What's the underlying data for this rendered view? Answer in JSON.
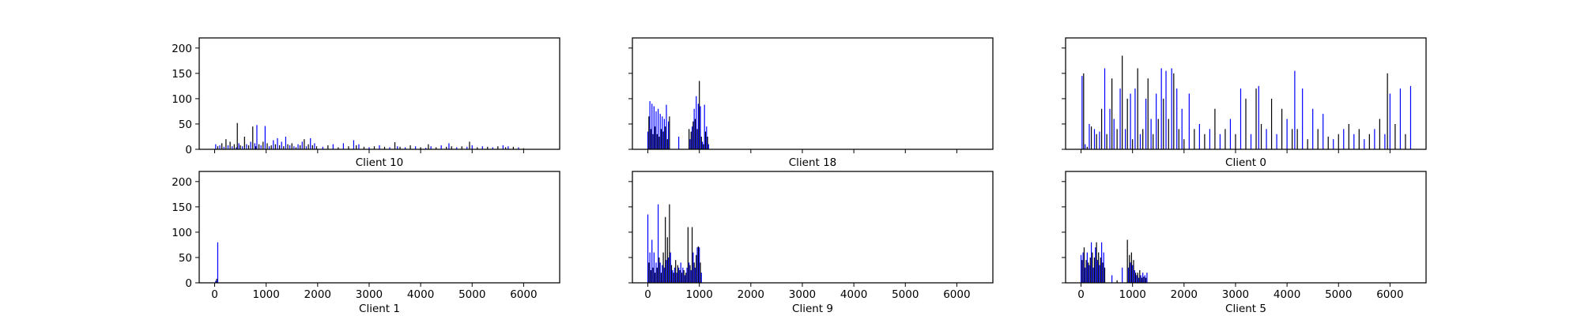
{
  "figure": {
    "background": "#ffffff"
  },
  "chart_data": [
    {
      "type": "bar",
      "title": "Client 10",
      "xlim": [
        -300,
        6700
      ],
      "ylim": [
        0,
        220
      ],
      "x_ticks": [
        0,
        1000,
        2000,
        3000,
        4000,
        5000,
        6000
      ],
      "y_ticks": [
        0,
        50,
        100,
        150,
        200
      ],
      "show_x_tick_labels": false,
      "show_y_tick_labels": true,
      "series": [
        {
          "colors": [
            "#0000ff",
            "#000000"
          ],
          "x": [
            20,
            60,
            100,
            140,
            180,
            220,
            260,
            300,
            340,
            380,
            420,
            440,
            470,
            500,
            540,
            580,
            620,
            660,
            700,
            740,
            780,
            800,
            820,
            860,
            900,
            940,
            980,
            1020,
            1060,
            1100,
            1140,
            1180,
            1220,
            1260,
            1300,
            1340,
            1380,
            1420,
            1460,
            1500,
            1540,
            1580,
            1620,
            1660,
            1700,
            1740,
            1780,
            1820,
            1860,
            1900,
            1940,
            1980,
            2100,
            2200,
            2300,
            2400,
            2500,
            2600,
            2700,
            2750,
            2800,
            2900,
            3000,
            3100,
            3200,
            3300,
            3400,
            3500,
            3550,
            3600,
            3700,
            3800,
            3900,
            4000,
            4100,
            4150,
            4200,
            4300,
            4400,
            4500,
            4550,
            4600,
            4700,
            4800,
            4900,
            4950,
            5000,
            5100,
            5200,
            5300,
            5400,
            5500,
            5600,
            5650,
            5700,
            5800,
            5900,
            6000
          ],
          "values": [
            10,
            6,
            8,
            12,
            5,
            20,
            8,
            15,
            6,
            10,
            4,
            52,
            12,
            8,
            6,
            25,
            10,
            8,
            15,
            45,
            12,
            6,
            48,
            10,
            8,
            15,
            46,
            12,
            6,
            8,
            18,
            10,
            22,
            8,
            15,
            6,
            25,
            10,
            8,
            12,
            6,
            4,
            10,
            8,
            15,
            20,
            6,
            10,
            22,
            8,
            12,
            6,
            5,
            8,
            10,
            4,
            12,
            6,
            18,
            8,
            10,
            5,
            4,
            6,
            8,
            5,
            4,
            14,
            6,
            5,
            4,
            8,
            6,
            4,
            3,
            10,
            6,
            4,
            8,
            5,
            12,
            6,
            4,
            6,
            5,
            15,
            8,
            4,
            6,
            5,
            4,
            6,
            8,
            4,
            6,
            5,
            4,
            2
          ]
        }
      ]
    },
    {
      "type": "bar",
      "title": "Client 18",
      "xlim": [
        -300,
        6700
      ],
      "ylim": [
        0,
        220
      ],
      "x_ticks": [
        0,
        1000,
        2000,
        3000,
        4000,
        5000,
        6000
      ],
      "y_ticks": [
        0,
        50,
        100,
        150,
        200
      ],
      "show_x_tick_labels": false,
      "show_y_tick_labels": false,
      "series": [
        {
          "colors": [
            "#0000ff",
            "#000000"
          ],
          "x": [
            0,
            20,
            40,
            60,
            80,
            100,
            120,
            140,
            160,
            180,
            200,
            220,
            240,
            260,
            280,
            300,
            320,
            340,
            360,
            380,
            400,
            420,
            600,
            800,
            820,
            840,
            860,
            880,
            900,
            920,
            940,
            960,
            980,
            1000,
            1020,
            1040,
            1060,
            1080,
            1100,
            1120,
            1140,
            1160,
            1180
          ],
          "values": [
            35,
            65,
            95,
            40,
            90,
            30,
            85,
            45,
            75,
            30,
            80,
            25,
            70,
            40,
            65,
            35,
            60,
            45,
            88,
            20,
            55,
            65,
            25,
            40,
            20,
            35,
            45,
            55,
            80,
            60,
            105,
            40,
            90,
            135,
            85,
            25,
            15,
            10,
            88,
            35,
            45,
            25,
            10
          ]
        }
      ]
    },
    {
      "type": "bar",
      "title": "Client 0",
      "xlim": [
        -300,
        6700
      ],
      "ylim": [
        0,
        220
      ],
      "x_ticks": [
        0,
        1000,
        2000,
        3000,
        4000,
        5000,
        6000
      ],
      "y_ticks": [
        0,
        50,
        100,
        150,
        200
      ],
      "show_x_tick_labels": false,
      "show_y_tick_labels": false,
      "series": [
        {
          "colors": [
            "#0000ff",
            "#000000"
          ],
          "x": [
            20,
            50,
            80,
            120,
            160,
            200,
            260,
            300,
            360,
            400,
            460,
            500,
            560,
            600,
            640,
            700,
            760,
            800,
            860,
            900,
            960,
            1000,
            1050,
            1100,
            1150,
            1200,
            1260,
            1300,
            1360,
            1400,
            1460,
            1500,
            1560,
            1600,
            1650,
            1700,
            1760,
            1800,
            1860,
            1900,
            1960,
            2000,
            2100,
            2200,
            2300,
            2400,
            2500,
            2600,
            2700,
            2800,
            2900,
            3000,
            3100,
            3200,
            3300,
            3400,
            3450,
            3500,
            3600,
            3700,
            3800,
            3900,
            4000,
            4100,
            4150,
            4200,
            4300,
            4400,
            4500,
            4600,
            4700,
            4800,
            4900,
            5000,
            5100,
            5200,
            5300,
            5400,
            5500,
            5600,
            5700,
            5800,
            5900,
            5950,
            6000,
            6100,
            6200,
            6300,
            6400
          ],
          "values": [
            145,
            150,
            10,
            5,
            50,
            45,
            40,
            30,
            35,
            80,
            160,
            30,
            80,
            140,
            60,
            40,
            120,
            185,
            40,
            100,
            110,
            20,
            120,
            160,
            30,
            40,
            100,
            140,
            60,
            30,
            110,
            60,
            160,
            100,
            155,
            60,
            160,
            150,
            120,
            40,
            80,
            20,
            110,
            40,
            50,
            30,
            40,
            80,
            30,
            40,
            60,
            30,
            120,
            100,
            30,
            120,
            125,
            50,
            40,
            100,
            30,
            80,
            60,
            40,
            155,
            40,
            120,
            20,
            80,
            40,
            70,
            25,
            20,
            30,
            40,
            50,
            30,
            40,
            20,
            30,
            40,
            60,
            30,
            150,
            110,
            50,
            120,
            30,
            125
          ]
        }
      ]
    },
    {
      "type": "bar",
      "title": "Client 1",
      "xlim": [
        -300,
        6700
      ],
      "ylim": [
        0,
        220
      ],
      "x_ticks": [
        0,
        1000,
        2000,
        3000,
        4000,
        5000,
        6000
      ],
      "y_ticks": [
        0,
        50,
        100,
        150,
        200
      ],
      "show_x_tick_labels": true,
      "show_y_tick_labels": true,
      "series": [
        {
          "colors": [
            "#0000ff",
            "#000000"
          ],
          "x": [
            20,
            40,
            60
          ],
          "values": [
            4,
            8,
            80
          ]
        }
      ]
    },
    {
      "type": "bar",
      "title": "Client 9",
      "xlim": [
        -300,
        6700
      ],
      "ylim": [
        0,
        220
      ],
      "x_ticks": [
        0,
        1000,
        2000,
        3000,
        4000,
        5000,
        6000
      ],
      "y_ticks": [
        0,
        50,
        100,
        150,
        200
      ],
      "show_x_tick_labels": true,
      "show_y_tick_labels": false,
      "series": [
        {
          "colors": [
            "#0000ff",
            "#000000"
          ],
          "x": [
            0,
            20,
            40,
            60,
            80,
            100,
            120,
            140,
            160,
            180,
            200,
            220,
            240,
            260,
            280,
            300,
            320,
            340,
            360,
            380,
            400,
            420,
            440,
            460,
            480,
            500,
            520,
            540,
            560,
            580,
            600,
            620,
            640,
            660,
            680,
            700,
            720,
            740,
            760,
            780,
            800,
            820,
            840,
            860,
            880,
            900,
            920,
            940,
            960,
            980,
            1000,
            1020,
            1040
          ],
          "values": [
            135,
            40,
            60,
            25,
            85,
            30,
            60,
            20,
            40,
            30,
            155,
            50,
            40,
            20,
            35,
            60,
            30,
            130,
            45,
            90,
            50,
            155,
            60,
            35,
            25,
            20,
            30,
            45,
            20,
            35,
            30,
            25,
            40,
            20,
            30,
            25,
            15,
            20,
            30,
            110,
            40,
            35,
            25,
            110,
            60,
            40,
            30,
            55,
            70,
            72,
            70,
            40,
            20
          ]
        }
      ]
    },
    {
      "type": "bar",
      "title": "Client 5",
      "xlim": [
        -300,
        6700
      ],
      "ylim": [
        0,
        220
      ],
      "x_ticks": [
        0,
        1000,
        2000,
        3000,
        4000,
        5000,
        6000
      ],
      "y_ticks": [
        0,
        50,
        100,
        150,
        200
      ],
      "show_x_tick_labels": true,
      "show_y_tick_labels": false,
      "series": [
        {
          "colors": [
            "#0000ff",
            "#000000"
          ],
          "x": [
            0,
            20,
            40,
            60,
            80,
            100,
            120,
            140,
            160,
            180,
            200,
            220,
            240,
            260,
            280,
            300,
            320,
            340,
            360,
            380,
            400,
            420,
            440,
            460,
            600,
            700,
            800,
            900,
            920,
            940,
            960,
            980,
            1000,
            1020,
            1040,
            1060,
            1080,
            1100,
            1120,
            1140,
            1160,
            1180,
            1200,
            1220,
            1240,
            1260,
            1280
          ],
          "values": [
            55,
            45,
            60,
            70,
            30,
            45,
            60,
            40,
            35,
            50,
            80,
            60,
            30,
            50,
            70,
            80,
            45,
            60,
            35,
            50,
            80,
            40,
            60,
            30,
            15,
            5,
            30,
            85,
            30,
            55,
            40,
            60,
            35,
            45,
            25,
            20,
            15,
            20,
            10,
            25,
            15,
            10,
            20,
            12,
            15,
            10,
            20
          ]
        }
      ]
    }
  ]
}
